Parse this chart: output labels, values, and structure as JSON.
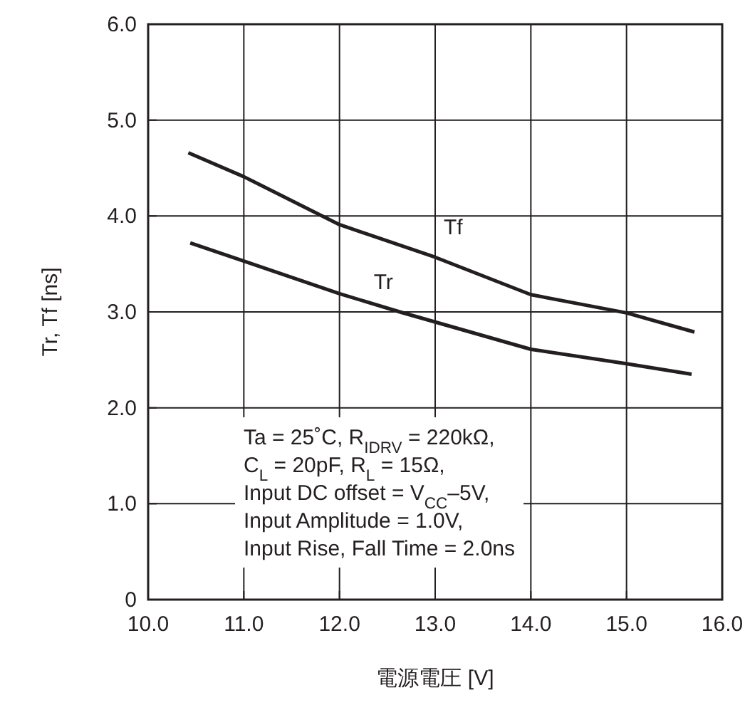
{
  "chart_data": {
    "type": "line",
    "xlabel": "電源電圧 [V]",
    "ylabel": "Tr, Tf [ns]",
    "xlim": [
      10,
      16
    ],
    "xticks": [
      {
        "value": 10,
        "label": "10.0"
      },
      {
        "value": 11,
        "label": "11.0"
      },
      {
        "value": 12,
        "label": "12.0"
      },
      {
        "value": 13,
        "label": "13.0"
      },
      {
        "value": 14,
        "label": "14.0"
      },
      {
        "value": 15,
        "label": "15.0"
      },
      {
        "value": 16,
        "label": "16.0"
      }
    ],
    "ylim": [
      0,
      6
    ],
    "yticks": [
      0,
      {
        "value": 1,
        "label": "1.0"
      },
      {
        "value": 2,
        "label": "2.0"
      },
      {
        "value": 3,
        "label": "3.0"
      },
      {
        "value": 4,
        "label": "4.0"
      },
      {
        "value": 5,
        "label": "5.0"
      },
      {
        "value": 6,
        "label": "6.0"
      }
    ],
    "grid": true,
    "marker": "none",
    "line_style": "solid",
    "series": [
      {
        "name": "Tf",
        "color": "#231f20",
        "x": [
          10.42,
          11.0,
          12.0,
          13.0,
          14.0,
          15.0,
          15.71
        ],
        "values": [
          4.66,
          4.41,
          3.91,
          3.57,
          3.18,
          2.99,
          2.79
        ]
      },
      {
        "name": "Tr",
        "color": "#231f20",
        "x": [
          10.44,
          11.0,
          12.0,
          12.63,
          14.0,
          15.0,
          15.68
        ],
        "values": [
          3.72,
          3.53,
          3.19,
          3.0,
          2.61,
          2.46,
          2.35
        ]
      }
    ],
    "annotations": [
      "Ta = 25˚C, R$_{IDRV}$ = 220kΩ,\nC$_{L}$ = 20pF, R$_{L}$ = 15Ω,\nInput DC offset = V$_{CC}$–5V,\nInput Amplitude = 1.0V,\nInput Rise, Fall Time = 2.0ns"
    ]
  }
}
